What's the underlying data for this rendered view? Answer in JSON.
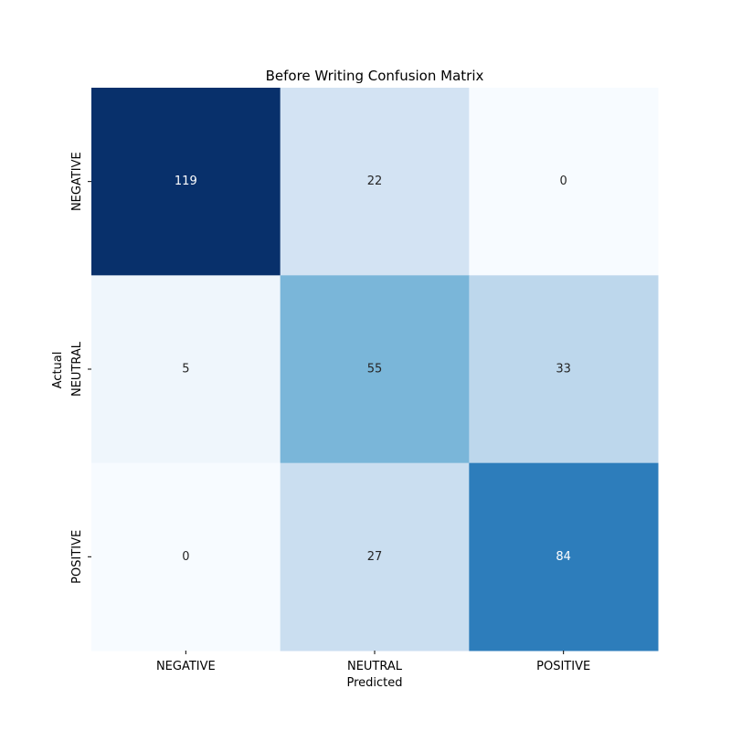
{
  "chart_data": {
    "type": "heatmap",
    "title": "Before Writing Confusion Matrix",
    "xlabel": "Predicted",
    "ylabel": "Actual",
    "x_categories": [
      "NEGATIVE",
      "NEUTRAL",
      "POSITIVE"
    ],
    "y_categories": [
      "NEGATIVE",
      "NEUTRAL",
      "POSITIVE"
    ],
    "values": [
      [
        119,
        22,
        0
      ],
      [
        5,
        55,
        33
      ],
      [
        0,
        27,
        84
      ]
    ],
    "colormap": "Blues",
    "color_range": [
      0,
      119
    ],
    "colorbar": false,
    "grid": false
  }
}
